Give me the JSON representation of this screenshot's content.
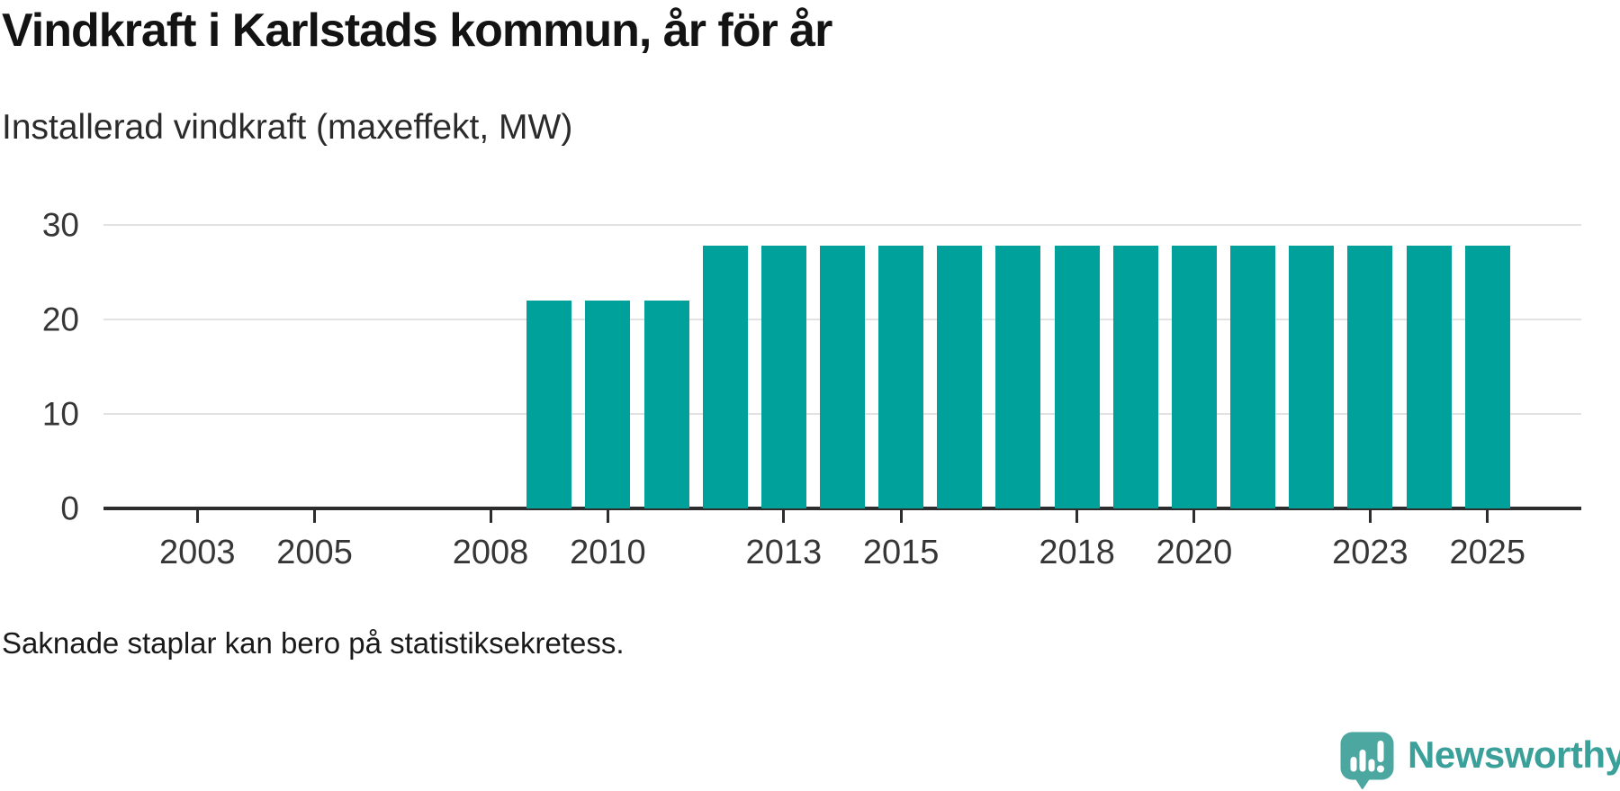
{
  "header": {
    "title": "Vindkraft i Karlstads kommun, år för år",
    "subtitle": "Installerad vindkraft (maxeffekt, MW)"
  },
  "footer": {
    "note": "Saknade staplar kan bero på statistiksekretess.",
    "brand": "Newsworthy"
  },
  "colors": {
    "bar": "#00a09b",
    "gridline": "#e2e2e2",
    "axis": "#2d2d2d",
    "text": "#1a1a1a",
    "logo_bubble": "#4ca7a1",
    "logo_text": "#3aa099"
  },
  "chart_data": {
    "type": "bar",
    "title": "Vindkraft i Karlstads kommun, år för år",
    "subtitle": "Installerad vindkraft (maxeffekt, MW)",
    "ylabel": "Installerad vindkraft (maxeffekt, MW)",
    "xlabel": "",
    "unit": "MW",
    "categories": [
      2002,
      2003,
      2004,
      2005,
      2006,
      2007,
      2008,
      2009,
      2010,
      2011,
      2012,
      2013,
      2014,
      2015,
      2016,
      2017,
      2018,
      2019,
      2020,
      2021,
      2022,
      2023,
      2024,
      2025
    ],
    "values": [
      null,
      null,
      null,
      null,
      null,
      null,
      null,
      22,
      22,
      22,
      27.8,
      27.8,
      27.8,
      27.8,
      27.8,
      27.8,
      27.8,
      27.8,
      27.8,
      27.8,
      27.8,
      27.8,
      27.8,
      27.8
    ],
    "x_tick_labels": [
      "2003",
      "2005",
      "2008",
      "2010",
      "2013",
      "2015",
      "2018",
      "2020",
      "2023",
      "2025"
    ],
    "y_ticks": [
      0,
      10,
      20,
      30
    ],
    "ylim": [
      0,
      30
    ],
    "xlim": [
      2001.4,
      2026.6
    ],
    "grid": "horizontal-only",
    "legend": "none",
    "bar_color": "#00a09b",
    "note": "Saknade staplar kan bero på statistiksekretess."
  }
}
